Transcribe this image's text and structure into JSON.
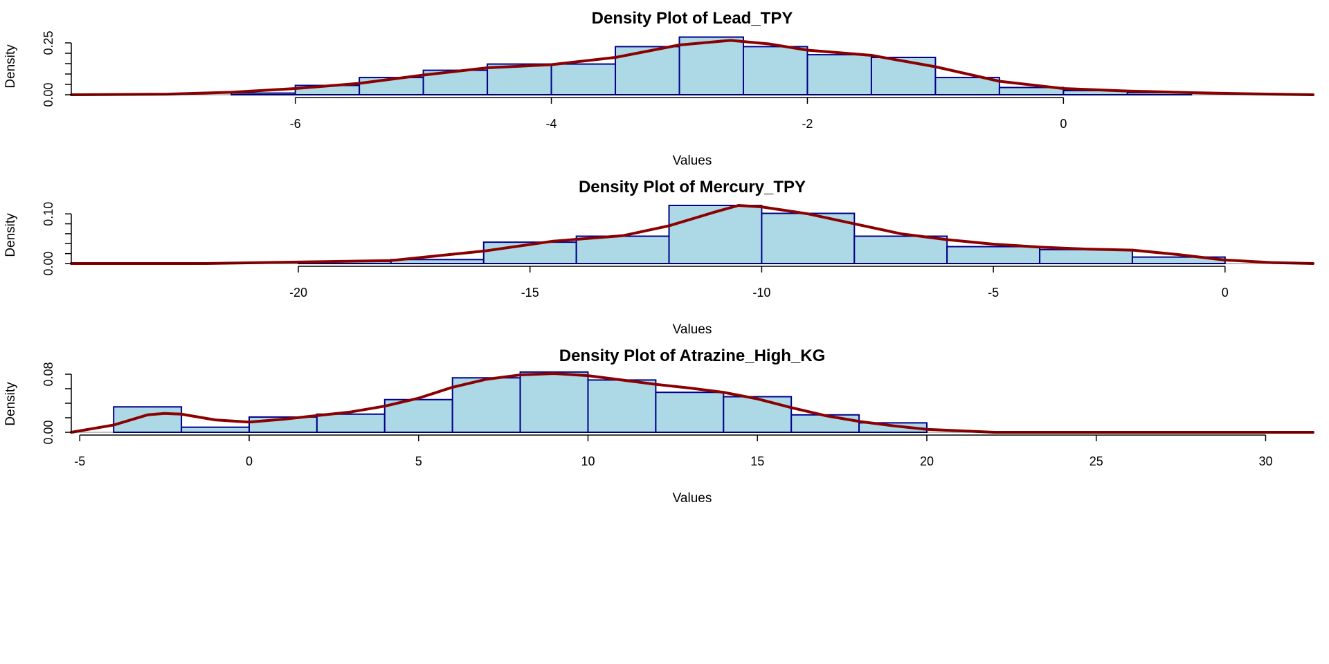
{
  "chart_data": [
    {
      "type": "histogram+density",
      "title": "Density Plot of Lead_TPY",
      "xlabel": "Values",
      "ylabel": "Density",
      "xlim": [
        -7.75,
        1.95
      ],
      "ylim": [
        0,
        0.28
      ],
      "x_ticks": [
        -6,
        -4,
        -2,
        0
      ],
      "x_tick_labels": [
        "-6",
        "-4",
        "-2",
        "0"
      ],
      "y_ticks": [
        0,
        0.05,
        0.1,
        0.15,
        0.2,
        0.25
      ],
      "y_tick_labels": [
        "0.00",
        "",
        "",
        "",
        "",
        "0.25"
      ],
      "bins": [
        {
          "x0": -6.5,
          "x1": -6.0,
          "density": 0.008
        },
        {
          "x0": -6.0,
          "x1": -5.5,
          "density": 0.045
        },
        {
          "x0": -5.5,
          "x1": -5.0,
          "density": 0.083
        },
        {
          "x0": -5.0,
          "x1": -4.5,
          "density": 0.118
        },
        {
          "x0": -4.5,
          "x1": -4.0,
          "density": 0.148
        },
        {
          "x0": -4.0,
          "x1": -3.5,
          "density": 0.148
        },
        {
          "x0": -3.5,
          "x1": -3.0,
          "density": 0.232
        },
        {
          "x0": -3.0,
          "x1": -2.5,
          "density": 0.278
        },
        {
          "x0": -2.5,
          "x1": -2.0,
          "density": 0.232
        },
        {
          "x0": -2.0,
          "x1": -1.5,
          "density": 0.193
        },
        {
          "x0": -1.5,
          "x1": -1.0,
          "density": 0.18
        },
        {
          "x0": -1.0,
          "x1": -0.5,
          "density": 0.083
        },
        {
          "x0": -0.5,
          "x1": 0.0,
          "density": 0.035
        },
        {
          "x0": 0.0,
          "x1": 0.5,
          "density": 0.02
        },
        {
          "x0": 0.5,
          "x1": 1.0,
          "density": 0.01
        }
      ],
      "density_curve": {
        "x": [
          -7.75,
          -7.0,
          -6.5,
          -6.0,
          -5.5,
          -5.0,
          -4.5,
          -4.0,
          -3.5,
          -3.0,
          -2.6,
          -2.3,
          -2.0,
          -1.5,
          -1.0,
          -0.5,
          0.0,
          0.5,
          1.0,
          1.5,
          1.95
        ],
        "y": [
          0.0,
          0.003,
          0.012,
          0.03,
          0.055,
          0.095,
          0.13,
          0.145,
          0.18,
          0.24,
          0.262,
          0.245,
          0.215,
          0.19,
          0.135,
          0.065,
          0.03,
          0.018,
          0.01,
          0.004,
          0.0
        ]
      }
    },
    {
      "type": "histogram+density",
      "title": "Density Plot of Mercury_TPY",
      "xlabel": "Values",
      "ylabel": "Density",
      "xlim": [
        -24.9,
        1.9
      ],
      "ylim": [
        0,
        0.117
      ],
      "x_ticks": [
        -20,
        -15,
        -10,
        -5,
        0
      ],
      "x_tick_labels": [
        "-20",
        "-15",
        "-10",
        "-5",
        "0"
      ],
      "y_ticks": [
        0,
        0.02,
        0.04,
        0.06,
        0.08,
        0.1
      ],
      "y_tick_labels": [
        "0.00",
        "",
        "",
        "",
        "",
        "0.10"
      ],
      "bins": [
        {
          "x0": -20,
          "x1": -18,
          "density": 0.004
        },
        {
          "x0": -18,
          "x1": -16,
          "density": 0.008
        },
        {
          "x0": -16,
          "x1": -14,
          "density": 0.043
        },
        {
          "x0": -14,
          "x1": -12,
          "density": 0.055
        },
        {
          "x0": -12,
          "x1": -10,
          "density": 0.117
        },
        {
          "x0": -10,
          "x1": -8,
          "density": 0.101
        },
        {
          "x0": -8,
          "x1": -6,
          "density": 0.055
        },
        {
          "x0": -6,
          "x1": -4,
          "density": 0.034
        },
        {
          "x0": -4,
          "x1": -2,
          "density": 0.028
        },
        {
          "x0": -2,
          "x1": 0,
          "density": 0.013
        }
      ],
      "density_curve": {
        "x": [
          -24.9,
          -22,
          -20,
          -18,
          -16,
          -14.5,
          -13,
          -12,
          -11,
          -10.5,
          -10,
          -9,
          -8,
          -7,
          -6,
          -5,
          -4,
          -3,
          -2,
          -1,
          0,
          1,
          1.9
        ],
        "y": [
          0.0,
          0.0,
          0.003,
          0.006,
          0.025,
          0.045,
          0.056,
          0.076,
          0.104,
          0.117,
          0.114,
          0.1,
          0.08,
          0.06,
          0.048,
          0.039,
          0.033,
          0.029,
          0.027,
          0.018,
          0.007,
          0.002,
          0.0
        ]
      }
    },
    {
      "type": "histogram+density",
      "title": "Density Plot of Atrazine_High_KG",
      "xlabel": "Values",
      "ylabel": "Density",
      "xlim": [
        -5.25,
        31.4
      ],
      "ylim": [
        0,
        0.08
      ],
      "x_ticks": [
        -5,
        0,
        5,
        10,
        15,
        20,
        25,
        30
      ],
      "x_tick_labels": [
        "-5",
        "0",
        "5",
        "10",
        "15",
        "20",
        "25",
        "30"
      ],
      "y_ticks": [
        0,
        0.02,
        0.04,
        0.06,
        0.08
      ],
      "y_tick_labels": [
        "0.00",
        "",
        "",
        "",
        "0.08"
      ],
      "bins": [
        {
          "x0": -4,
          "x1": -2,
          "density": 0.035
        },
        {
          "x0": -2,
          "x1": 0,
          "density": 0.007
        },
        {
          "x0": 0,
          "x1": 2,
          "density": 0.021
        },
        {
          "x0": 2,
          "x1": 4,
          "density": 0.025
        },
        {
          "x0": 4,
          "x1": 6,
          "density": 0.045
        },
        {
          "x0": 6,
          "x1": 8,
          "density": 0.075
        },
        {
          "x0": 8,
          "x1": 10,
          "density": 0.083
        },
        {
          "x0": 10,
          "x1": 12,
          "density": 0.072
        },
        {
          "x0": 12,
          "x1": 14,
          "density": 0.055
        },
        {
          "x0": 14,
          "x1": 16,
          "density": 0.049
        },
        {
          "x0": 16,
          "x1": 18,
          "density": 0.024
        },
        {
          "x0": 18,
          "x1": 20,
          "density": 0.013
        }
      ],
      "density_curve": {
        "x": [
          -5.25,
          -4,
          -3,
          -2.5,
          -2,
          -1,
          0,
          1,
          2,
          3,
          4,
          5,
          6,
          7,
          8,
          9,
          10,
          11,
          12,
          13,
          14,
          15,
          16,
          17,
          18,
          19,
          20,
          21,
          22,
          25,
          28,
          31.4
        ],
        "y": [
          0.0,
          0.01,
          0.024,
          0.026,
          0.025,
          0.017,
          0.014,
          0.018,
          0.023,
          0.028,
          0.036,
          0.047,
          0.062,
          0.073,
          0.079,
          0.081,
          0.078,
          0.072,
          0.066,
          0.061,
          0.055,
          0.046,
          0.034,
          0.023,
          0.015,
          0.009,
          0.004,
          0.002,
          0.0,
          0.0,
          0.0,
          0.0
        ]
      }
    }
  ],
  "colors": {
    "bar_fill": "#add8e6",
    "bar_border": "#00008b",
    "density_line": "#8b0000"
  }
}
